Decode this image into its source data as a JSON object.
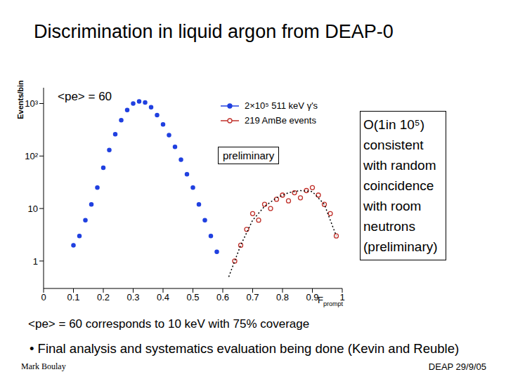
{
  "chart_data": {
    "type": "scatter",
    "title": "Discrimination in liquid argon from DEAP-0",
    "xlabel": "Fprompt",
    "ylabel": "Events/bin",
    "log": "y",
    "xlim": [
      0,
      1
    ],
    "xticks": [
      0,
      0.1,
      0.2,
      0.3,
      0.4,
      0.5,
      0.6,
      0.7,
      0.8,
      0.9,
      1
    ],
    "ylim": [
      0.3,
      2000
    ],
    "yticks": [
      1,
      10,
      {
        "value": 100,
        "label": "10²"
      },
      {
        "value": 1000,
        "label": "10³"
      }
    ],
    "legend": "upper right",
    "series": [
      {
        "name": "2×10⁵ 511 keV γ's",
        "color": "#2040e0",
        "type": "scatter",
        "marker": "circle",
        "x": [
          0.1,
          0.12,
          0.14,
          0.16,
          0.18,
          0.2,
          0.22,
          0.24,
          0.26,
          0.28,
          0.3,
          0.32,
          0.34,
          0.36,
          0.38,
          0.4,
          0.42,
          0.44,
          0.46,
          0.48,
          0.5,
          0.52,
          0.54,
          0.56,
          0.58
        ],
        "values": [
          2,
          3,
          6,
          12,
          25,
          60,
          130,
          260,
          480,
          750,
          1000,
          1100,
          1050,
          850,
          600,
          400,
          250,
          150,
          85,
          45,
          25,
          12,
          6,
          3,
          1.5
        ]
      },
      {
        "name": "219 AmBe events",
        "color": "#c0302a",
        "type": "scatter",
        "marker": "open_circle",
        "x": [
          0.64,
          0.66,
          0.68,
          0.7,
          0.72,
          0.74,
          0.76,
          0.78,
          0.8,
          0.82,
          0.84,
          0.86,
          0.88,
          0.9,
          0.92,
          0.94,
          0.96,
          0.98
        ],
        "values": [
          1,
          2,
          4,
          8,
          6,
          12,
          10,
          15,
          18,
          14,
          20,
          16,
          22,
          25,
          18,
          12,
          8,
          3
        ]
      },
      {
        "color": "#000000",
        "type": "line",
        "line_style": "dotted",
        "x": [
          0.62,
          0.66,
          0.7,
          0.74,
          0.78,
          0.82,
          0.86,
          0.9,
          0.94,
          0.98
        ],
        "values": [
          0.5,
          2,
          6,
          11,
          16,
          20,
          22,
          21,
          12,
          3
        ]
      }
    ],
    "annotations": {
      "pe": "<pe> = 60",
      "stamp": "preliminary",
      "note": [
        "O(1in 10⁵)",
        "consistent",
        "with random",
        "coincidence",
        "with room",
        "neutrons",
        "(preliminary)"
      ],
      "caption": "<pe> = 60 corresponds to 10 keV with 75% coverage",
      "bullet": "• Final analysis and systematics evaluation being done (Kevin and Reuble)",
      "author": "Mark Boulay",
      "footer": "DEAP 29/9/05"
    }
  }
}
